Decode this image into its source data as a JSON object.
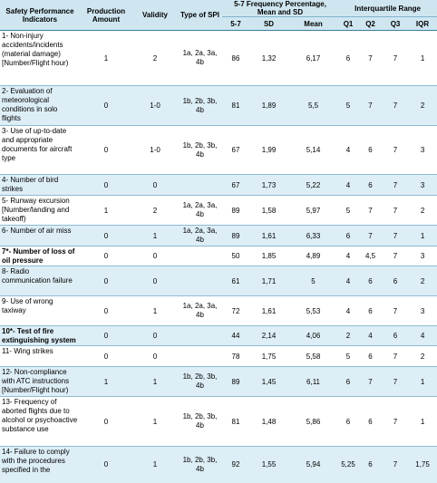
{
  "headers": {
    "indicator": "Safety Performance Indicators",
    "production": "Production Amount",
    "validity": "Validity",
    "type": "Type of SPI",
    "frequency_group": "5-7 Frequency Percentage, Mean and SD",
    "iqr_group": "Interquartile Range",
    "sub": [
      "5-7",
      "SD",
      "Mean",
      "Q1",
      "Q2",
      "Q3",
      "IQR"
    ]
  },
  "rows": [
    {
      "indicator": "1- Non-injury accidents/incidents (material damage) [Number/Flight hour)",
      "production": "1",
      "validity": "2",
      "type": "1a, 2a, 3a, 4b",
      "f57": "86",
      "sd": "1,32",
      "mean": "6,17",
      "q1": "6",
      "q2": "7",
      "q3": "7",
      "iqr": "1",
      "bold": false,
      "shade": false
    },
    {
      "indicator": "2- Evaluation of meteorological conditions in solo flights",
      "production": "0",
      "validity": "1-0",
      "type": "1b, 2b, 3b, 4b",
      "f57": "81",
      "sd": "1,89",
      "mean": "5,5",
      "q1": "5",
      "q2": "7",
      "q3": "7",
      "iqr": "2",
      "bold": false,
      "shade": true
    },
    {
      "indicator": "3- Use of up-to-date and appropriate documents for aircraft type",
      "production": "0",
      "validity": "1-0",
      "type": "1b, 2b, 3b, 4b",
      "f57": "67",
      "sd": "1,99",
      "mean": "5,14",
      "q1": "4",
      "q2": "6",
      "q3": "7",
      "iqr": "3",
      "bold": false,
      "shade": false
    },
    {
      "indicator": "4- Number of bird strikes",
      "production": "0",
      "validity": "0",
      "type": "",
      "f57": "67",
      "sd": "1,73",
      "mean": "5,22",
      "q1": "4",
      "q2": "6",
      "q3": "7",
      "iqr": "3",
      "bold": false,
      "shade": true
    },
    {
      "indicator": "5- Runway excursion [Number/landing and takeoff)",
      "production": "1",
      "validity": "2",
      "type": "1a, 2a, 3a, 4b",
      "f57": "89",
      "sd": "1,58",
      "mean": "5,97",
      "q1": "5",
      "q2": "7",
      "q3": "7",
      "iqr": "2",
      "bold": false,
      "shade": false
    },
    {
      "indicator": "6- Number of air miss",
      "production": "0",
      "validity": "1",
      "type": "1a, 2a, 3a, 4b",
      "f57": "89",
      "sd": "1,61",
      "mean": "6,33",
      "q1": "6",
      "q2": "7",
      "q3": "7",
      "iqr": "1",
      "bold": false,
      "shade": true
    },
    {
      "indicator": "7*- Number of loss of oil pressure",
      "production": "0",
      "validity": "0",
      "type": "",
      "f57": "50",
      "sd": "1,85",
      "mean": "4,89",
      "q1": "4",
      "q2": "4,5",
      "q3": "7",
      "iqr": "3",
      "bold": true,
      "shade": false
    },
    {
      "indicator": "8- Radio communication failure",
      "production": "0",
      "validity": "0",
      "type": "",
      "f57": "61",
      "sd": "1,71",
      "mean": "5",
      "q1": "4",
      "q2": "6",
      "q3": "6",
      "iqr": "2",
      "bold": false,
      "shade": true
    },
    {
      "indicator": "9- Use of wrong taxiway",
      "production": "0",
      "validity": "1",
      "type": "1a, 2a, 3a, 4b",
      "f57": "72",
      "sd": "1,61",
      "mean": "5,53",
      "q1": "4",
      "q2": "6",
      "q3": "7",
      "iqr": "3",
      "bold": false,
      "shade": false
    },
    {
      "indicator": "10*- Test of fire extinguishing system",
      "production": "0",
      "validity": "0",
      "type": "",
      "f57": "44",
      "sd": "2,14",
      "mean": "4,06",
      "q1": "2",
      "q2": "4",
      "q3": "6",
      "iqr": "4",
      "bold": true,
      "shade": true
    },
    {
      "indicator": "11- Wing strikes",
      "production": "0",
      "validity": "0",
      "type": "",
      "f57": "78",
      "sd": "1,75",
      "mean": "5,58",
      "q1": "5",
      "q2": "6",
      "q3": "7",
      "iqr": "2",
      "bold": false,
      "shade": false
    },
    {
      "indicator": "12- Non-compliance with ATC instructions [Number/Flight hour)",
      "production": "1",
      "validity": "1",
      "type": "1b, 2b, 3b, 4b",
      "f57": "89",
      "sd": "1,45",
      "mean": "6,11",
      "q1": "6",
      "q2": "7",
      "q3": "7",
      "iqr": "1",
      "bold": false,
      "shade": true
    },
    {
      "indicator": "13- Frequency of aborted flights due to alcohol or psychoactive substance use",
      "production": "0",
      "validity": "1",
      "type": "1b, 2b, 3b, 4b",
      "f57": "81",
      "sd": "1,48",
      "mean": "5,86",
      "q1": "6",
      "q2": "6",
      "q3": "7",
      "iqr": "1",
      "bold": false,
      "shade": false
    },
    {
      "indicator": "14- Failure to comply with the procedures specified in the",
      "production": "0",
      "validity": "1",
      "type": "1b, 2b, 3b, 4b",
      "f57": "92",
      "sd": "1,55",
      "mean": "5,94",
      "q1": "5,25",
      "q2": "6",
      "q3": "7",
      "iqr": "1,75",
      "bold": false,
      "shade": true
    }
  ]
}
